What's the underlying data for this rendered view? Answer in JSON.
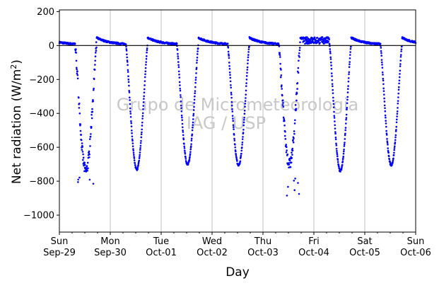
{
  "chart_data": {
    "type": "scatter",
    "xlabel": "Day",
    "ylabel_main": "Net radiation (W/m",
    "ylabel_sup": "2",
    "ylabel_end": ")",
    "ylim": [
      -1100,
      210
    ],
    "xlim_days": [
      0,
      7
    ],
    "x_scale": "date",
    "grid": "vertical at day boundaries",
    "zero_line": true,
    "point_color": "#0000ff",
    "y_ticks": [
      200,
      0,
      -200,
      -400,
      -600,
      -800,
      -1000
    ],
    "y_tick_labels": [
      "200",
      "0",
      "−200",
      "−400",
      "−600",
      "−800",
      "−1000"
    ],
    "x_ticks": [
      {
        "day": "Sun",
        "date": "Sep-29"
      },
      {
        "day": "Mon",
        "date": "Sep-30"
      },
      {
        "day": "Tue",
        "date": "Oct-01"
      },
      {
        "day": "Wed",
        "date": "Oct-02"
      },
      {
        "day": "Thu",
        "date": "Oct-03"
      },
      {
        "day": "Fri",
        "date": "Oct-04"
      },
      {
        "day": "Sat",
        "date": "Oct-05"
      },
      {
        "day": "Sun",
        "date": "Oct-06"
      }
    ],
    "watermark_line1": "Grupo de Micrometeorologia",
    "watermark_line2": "IAG / USP",
    "series": [
      {
        "values_by_day": [
          {
            "day": "Sep-29",
            "peak": -740,
            "min": -815
          },
          {
            "day": "Sep-30",
            "peak": -730,
            "min": -750
          },
          {
            "day": "Oct-01",
            "peak": -700,
            "min": -715
          },
          {
            "day": "Oct-02",
            "peak": -705,
            "min": -715
          },
          {
            "day": "Oct-03",
            "peak": -700,
            "min": -900
          },
          {
            "day": "Oct-04",
            "peak": -740,
            "min": -750
          },
          {
            "day": "Oct-05",
            "peak": -705,
            "min": -715
          }
        ],
        "night_max": 70
      }
    ]
  }
}
